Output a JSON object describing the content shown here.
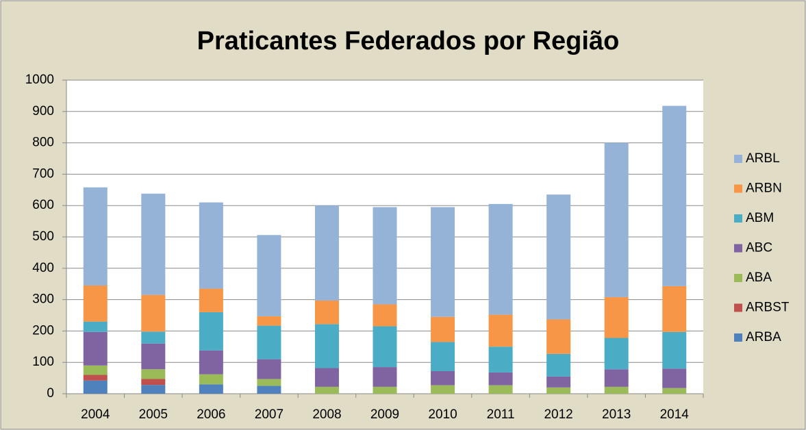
{
  "chart_data": {
    "type": "stacked_bar",
    "title": "Praticantes Federados por Região",
    "categories": [
      "2004",
      "2005",
      "2006",
      "2007",
      "2008",
      "2009",
      "2010",
      "2011",
      "2012",
      "2013",
      "2014"
    ],
    "series": [
      {
        "name": "ARBA",
        "color": "#4f81bd",
        "values": [
          42,
          28,
          30,
          25,
          0,
          0,
          0,
          0,
          0,
          0,
          0
        ]
      },
      {
        "name": "ARBST",
        "color": "#c0504d",
        "values": [
          18,
          19,
          0,
          0,
          0,
          0,
          0,
          0,
          0,
          0,
          0
        ]
      },
      {
        "name": "ABA",
        "color": "#9bbb59",
        "values": [
          30,
          31,
          32,
          22,
          22,
          22,
          27,
          27,
          20,
          22,
          18
        ]
      },
      {
        "name": "ABC",
        "color": "#8064a2",
        "values": [
          107,
          82,
          76,
          63,
          60,
          63,
          45,
          41,
          35,
          56,
          62
        ]
      },
      {
        "name": "ABM",
        "color": "#4bacc6",
        "values": [
          33,
          38,
          122,
          107,
          140,
          130,
          93,
          82,
          72,
          100,
          117
        ]
      },
      {
        "name": "ARBN",
        "color": "#f79646",
        "values": [
          115,
          117,
          75,
          30,
          75,
          70,
          80,
          102,
          110,
          130,
          146
        ]
      },
      {
        "name": "ARBL",
        "color": "#95b3d7",
        "values": [
          313,
          323,
          275,
          259,
          303,
          310,
          350,
          353,
          398,
          492,
          575
        ]
      }
    ],
    "ylim": [
      0,
      1000
    ],
    "yticks": [
      0,
      100,
      200,
      300,
      400,
      500,
      600,
      700,
      800,
      900,
      1000
    ],
    "grid": true,
    "legend": "right"
  }
}
